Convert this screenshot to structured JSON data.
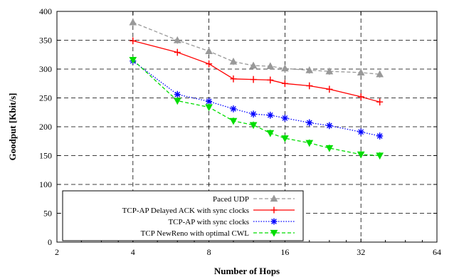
{
  "chart_data": {
    "type": "line",
    "xlabel": "Number of Hops",
    "ylabel": "Goodput [Kbit/s]",
    "xscale": "log2",
    "xlim": [
      2,
      64
    ],
    "ylim": [
      0,
      400
    ],
    "xticks": [
      "2",
      "4",
      "8",
      "16",
      "32",
      "64"
    ],
    "yticks": [
      "0",
      "50",
      "100",
      "150",
      "200",
      "250",
      "300",
      "350",
      "400"
    ],
    "grid": true,
    "legend_position": "bottom-left",
    "series": [
      {
        "name": "Paced UDP",
        "color": "#999999",
        "dash": "dashed",
        "marker": "triangle-up",
        "x": [
          4,
          6,
          8,
          10,
          12,
          14,
          16,
          20,
          24,
          32,
          38
        ],
        "y": [
          381,
          350,
          331,
          313,
          306,
          305,
          301,
          298,
          296,
          294,
          291
        ]
      },
      {
        "name": "TCP-AP Delayed ACK with sync clocks",
        "color": "#ff0000",
        "dash": "solid",
        "marker": "plus",
        "x": [
          4,
          6,
          8,
          10,
          12,
          14,
          16,
          20,
          24,
          32,
          38
        ],
        "y": [
          349,
          329,
          309,
          283,
          282,
          281,
          275,
          271,
          265,
          252,
          243
        ]
      },
      {
        "name": "TCP-AP with sync clocks",
        "color": "#0000ff",
        "dash": "dotted",
        "marker": "asterisk",
        "x": [
          4,
          6,
          8,
          10,
          12,
          14,
          16,
          20,
          24,
          32,
          38
        ],
        "y": [
          314,
          256,
          244,
          231,
          222,
          220,
          215,
          207,
          202,
          191,
          184
        ]
      },
      {
        "name": "TCP NewReno with optimal CWL",
        "color": "#00dd00",
        "dash": "dashed",
        "marker": "triangle-down",
        "x": [
          4,
          6,
          8,
          10,
          12,
          14,
          16,
          20,
          24,
          32,
          38
        ],
        "y": [
          316,
          245,
          234,
          210,
          203,
          189,
          180,
          172,
          163,
          152,
          150
        ]
      }
    ]
  }
}
